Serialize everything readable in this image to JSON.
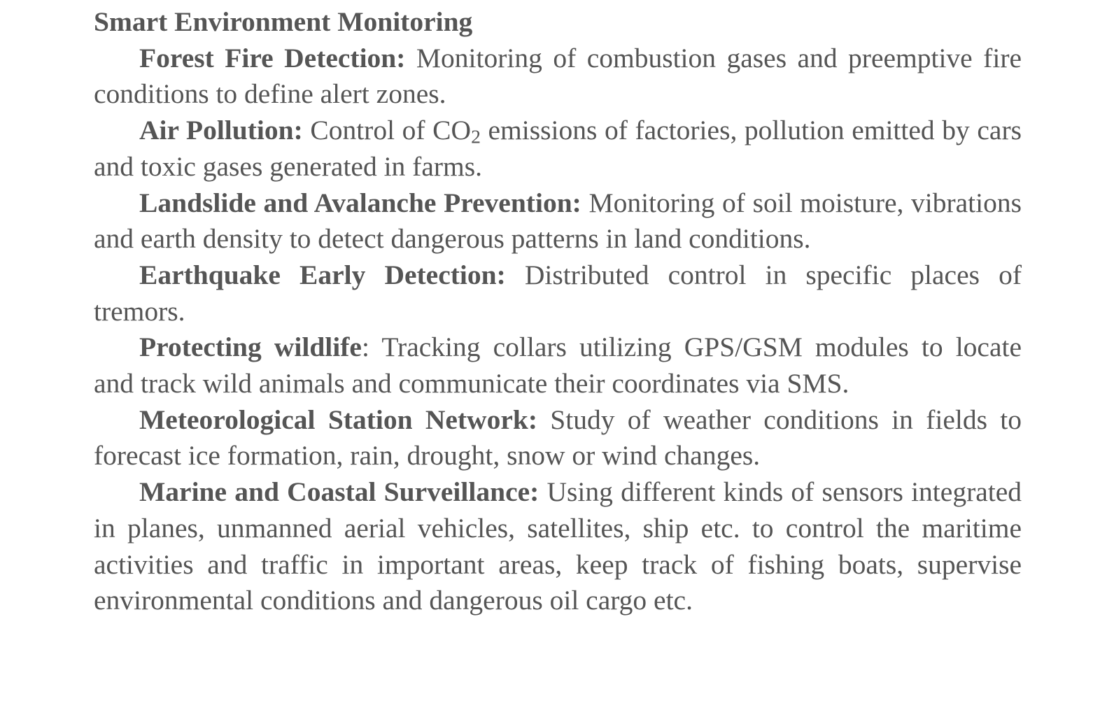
{
  "section": {
    "title": "Smart Environment Monitoring"
  },
  "items": [
    {
      "term": "Forest Fire Detection:",
      "text": " Monitoring of combustion gases and preemptive fire conditions to define alert zones."
    },
    {
      "term": "Air Pollution:",
      "text_pre": " Control of CO",
      "text_sub": "2",
      "text_post": " emissions of factories, pollution emitted by cars and toxic gases generated in farms."
    },
    {
      "term": "Landslide and Avalanche Prevention:",
      "text": " Monitoring of soil mois­ture, vibrations and earth density to detect dangerous patterns in land conditions."
    },
    {
      "term": "Earthquake Early Detection:",
      "text": " Distributed control in specific places of tremors."
    },
    {
      "term": "Protecting wildlife",
      "text": ": Tracking collars utilizing GPS/GSM modules to locate and track wild animals and communicate their coordinates via SMS."
    },
    {
      "term": "Meteorological Station Network:",
      "text": " Study of weather conditions in fields to forecast ice formation, rain, drought, snow or wind changes."
    },
    {
      "term": "Marine and Coastal Surveillance:",
      "text": "  Using different kinds of sen­sors integrated in planes, unmanned aerial vehicles, satellites, ship etc. to control the maritime activities and traffic in important areas, keep track of fishing boats, supervise environmental conditions and dangerous oil cargo etc."
    }
  ]
}
